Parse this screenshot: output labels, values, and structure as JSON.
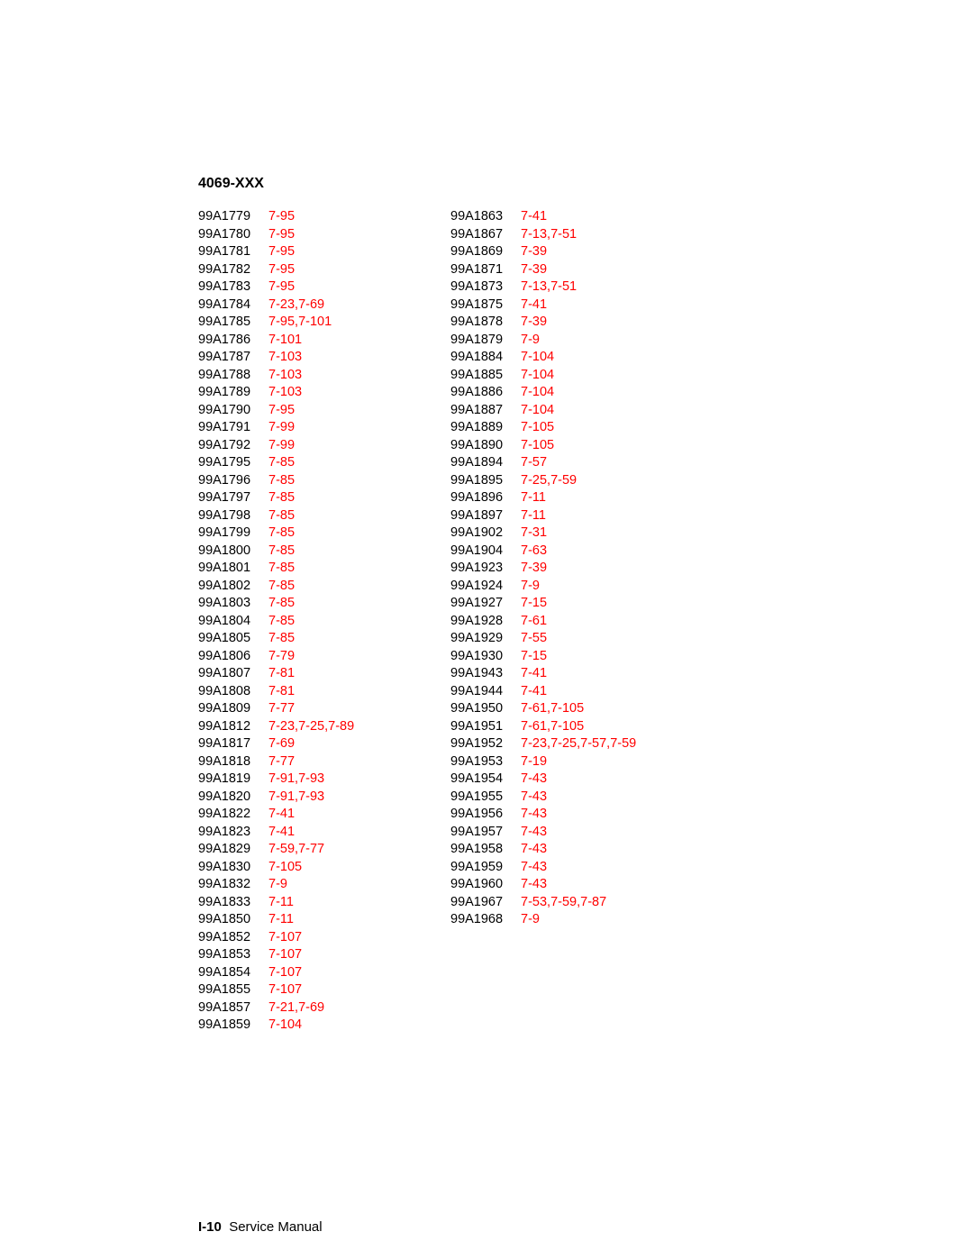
{
  "heading": "4069-XXX",
  "footer_page": "I-10",
  "footer_text": "Service Manual",
  "link_color": "#ff0000",
  "text_color": "#000000",
  "font_family": "Arial",
  "heading_fontsize": 16,
  "body_fontsize": 14.5,
  "line_height": 19.5,
  "columns": [
    [
      {
        "part": "99A1779",
        "refs": [
          "7-95"
        ]
      },
      {
        "part": "99A1780",
        "refs": [
          "7-95"
        ]
      },
      {
        "part": "99A1781",
        "refs": [
          "7-95"
        ]
      },
      {
        "part": "99A1782",
        "refs": [
          "7-95"
        ]
      },
      {
        "part": "99A1783",
        "refs": [
          "7-95"
        ]
      },
      {
        "part": "99A1784",
        "refs": [
          "7-23",
          "7-69"
        ]
      },
      {
        "part": "99A1785",
        "refs": [
          "7-95",
          "7-101"
        ]
      },
      {
        "part": "99A1786",
        "refs": [
          "7-101"
        ]
      },
      {
        "part": "99A1787",
        "refs": [
          "7-103"
        ]
      },
      {
        "part": "99A1788",
        "refs": [
          "7-103"
        ]
      },
      {
        "part": "99A1789",
        "refs": [
          "7-103"
        ]
      },
      {
        "part": "99A1790",
        "refs": [
          "7-95"
        ]
      },
      {
        "part": "99A1791",
        "refs": [
          "7-99"
        ]
      },
      {
        "part": "99A1792",
        "refs": [
          "7-99"
        ]
      },
      {
        "part": "99A1795",
        "refs": [
          "7-85"
        ]
      },
      {
        "part": "99A1796",
        "refs": [
          "7-85"
        ]
      },
      {
        "part": "99A1797",
        "refs": [
          "7-85"
        ]
      },
      {
        "part": "99A1798",
        "refs": [
          "7-85"
        ]
      },
      {
        "part": "99A1799",
        "refs": [
          "7-85"
        ]
      },
      {
        "part": "99A1800",
        "refs": [
          "7-85"
        ]
      },
      {
        "part": "99A1801",
        "refs": [
          "7-85"
        ]
      },
      {
        "part": "99A1802",
        "refs": [
          "7-85"
        ]
      },
      {
        "part": "99A1803",
        "refs": [
          "7-85"
        ]
      },
      {
        "part": "99A1804",
        "refs": [
          "7-85"
        ]
      },
      {
        "part": "99A1805",
        "refs": [
          "7-85"
        ]
      },
      {
        "part": "99A1806",
        "refs": [
          "7-79"
        ]
      },
      {
        "part": "99A1807",
        "refs": [
          "7-81"
        ]
      },
      {
        "part": "99A1808",
        "refs": [
          "7-81"
        ]
      },
      {
        "part": "99A1809",
        "refs": [
          "7-77"
        ]
      },
      {
        "part": "99A1812",
        "refs": [
          "7-23",
          "7-25",
          "7-89"
        ]
      },
      {
        "part": "99A1817",
        "refs": [
          "7-69"
        ]
      },
      {
        "part": "99A1818",
        "refs": [
          "7-77"
        ]
      },
      {
        "part": "99A1819",
        "refs": [
          "7-91",
          "7-93"
        ]
      },
      {
        "part": "99A1820",
        "refs": [
          "7-91",
          "7-93"
        ]
      },
      {
        "part": "99A1822",
        "refs": [
          "7-41"
        ]
      },
      {
        "part": "99A1823",
        "refs": [
          "7-41"
        ]
      },
      {
        "part": "99A1829",
        "refs": [
          "7-59",
          "7-77"
        ]
      },
      {
        "part": "99A1830",
        "refs": [
          "7-105"
        ]
      },
      {
        "part": "99A1832",
        "refs": [
          "7-9"
        ]
      },
      {
        "part": "99A1833",
        "refs": [
          "7-11"
        ]
      },
      {
        "part": "99A1850",
        "refs": [
          "7-11"
        ]
      },
      {
        "part": "99A1852",
        "refs": [
          "7-107"
        ]
      },
      {
        "part": "99A1853",
        "refs": [
          "7-107"
        ]
      },
      {
        "part": "99A1854",
        "refs": [
          "7-107"
        ]
      },
      {
        "part": "99A1855",
        "refs": [
          "7-107"
        ]
      },
      {
        "part": "99A1857",
        "refs": [
          "7-21",
          "7-69"
        ]
      },
      {
        "part": "99A1859",
        "refs": [
          "7-104"
        ]
      }
    ],
    [
      {
        "part": "99A1863",
        "refs": [
          "7-41"
        ]
      },
      {
        "part": "99A1867",
        "refs": [
          "7-13",
          "7-51"
        ]
      },
      {
        "part": "99A1869",
        "refs": [
          "7-39"
        ]
      },
      {
        "part": "99A1871",
        "refs": [
          "7-39"
        ]
      },
      {
        "part": "99A1873",
        "refs": [
          "7-13",
          "7-51"
        ]
      },
      {
        "part": "99A1875",
        "refs": [
          "7-41"
        ]
      },
      {
        "part": "99A1878",
        "refs": [
          "7-39"
        ]
      },
      {
        "part": "99A1879",
        "refs": [
          "7-9"
        ]
      },
      {
        "part": "99A1884",
        "refs": [
          "7-104"
        ]
      },
      {
        "part": "99A1885",
        "refs": [
          "7-104"
        ]
      },
      {
        "part": "99A1886",
        "refs": [
          "7-104"
        ]
      },
      {
        "part": "99A1887",
        "refs": [
          "7-104"
        ]
      },
      {
        "part": "99A1889",
        "refs": [
          "7-105"
        ]
      },
      {
        "part": "99A1890",
        "refs": [
          "7-105"
        ]
      },
      {
        "part": "99A1894",
        "refs": [
          "7-57"
        ]
      },
      {
        "part": "99A1895",
        "refs": [
          "7-25",
          "7-59"
        ]
      },
      {
        "part": "99A1896",
        "refs": [
          "7-11"
        ]
      },
      {
        "part": "99A1897",
        "refs": [
          "7-11"
        ]
      },
      {
        "part": "99A1902",
        "refs": [
          "7-31"
        ]
      },
      {
        "part": "99A1904",
        "refs": [
          "7-63"
        ]
      },
      {
        "part": "99A1923",
        "refs": [
          "7-39"
        ]
      },
      {
        "part": "99A1924",
        "refs": [
          "7-9"
        ]
      },
      {
        "part": "99A1927",
        "refs": [
          "7-15"
        ]
      },
      {
        "part": "99A1928",
        "refs": [
          "7-61"
        ]
      },
      {
        "part": "99A1929",
        "refs": [
          "7-55"
        ]
      },
      {
        "part": "99A1930",
        "refs": [
          "7-15"
        ]
      },
      {
        "part": "99A1943",
        "refs": [
          "7-41"
        ]
      },
      {
        "part": "99A1944",
        "refs": [
          "7-41"
        ]
      },
      {
        "part": "99A1950",
        "refs": [
          "7-61",
          "7-105"
        ]
      },
      {
        "part": "99A1951",
        "refs": [
          "7-61",
          "7-105"
        ]
      },
      {
        "part": "99A1952",
        "refs": [
          "7-23",
          "7-25",
          "7-57",
          "7-59"
        ]
      },
      {
        "part": "99A1953",
        "refs": [
          "7-19"
        ]
      },
      {
        "part": "99A1954",
        "refs": [
          "7-43"
        ]
      },
      {
        "part": "99A1955",
        "refs": [
          "7-43"
        ]
      },
      {
        "part": "99A1956",
        "refs": [
          "7-43"
        ]
      },
      {
        "part": "99A1957",
        "refs": [
          "7-43"
        ]
      },
      {
        "part": "99A1958",
        "refs": [
          "7-43"
        ]
      },
      {
        "part": "99A1959",
        "refs": [
          "7-43"
        ]
      },
      {
        "part": "99A1960",
        "refs": [
          "7-43"
        ]
      },
      {
        "part": "99A1967",
        "refs": [
          "7-53",
          "7-59",
          "7-87"
        ]
      },
      {
        "part": "99A1968",
        "refs": [
          "7-9"
        ]
      }
    ]
  ]
}
